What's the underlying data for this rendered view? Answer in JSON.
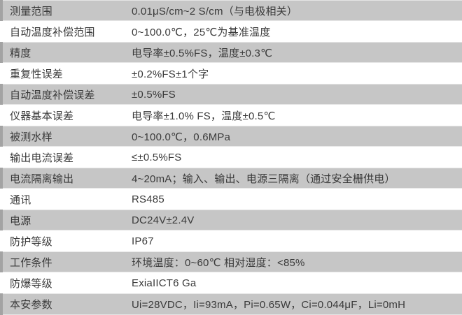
{
  "table": {
    "rows": [
      {
        "label": "测量范围",
        "value": "0.01μS/cm~2 S/cm（与电极相关）"
      },
      {
        "label": "自动温度补偿范围",
        "value": "0~100.0℃，25℃为基准温度"
      },
      {
        "label": "精度",
        "value": "电导率±0.5%FS，温度±0.3℃"
      },
      {
        "label": "重复性误差",
        "value": "±0.2%FS±1个字"
      },
      {
        "label": "自动温度补偿误差",
        "value": "±0.5%FS"
      },
      {
        "label": "仪器基本误差",
        "value": "电导率±1.0% FS，温度±0.5℃"
      },
      {
        "label": "被测水样",
        "value": "0~100.0℃，0.6MPa"
      },
      {
        "label": "输出电流误差",
        "value": "≤±0.5%FS"
      },
      {
        "label": "电流隔离输出",
        "value": "4~20mA；输入、输出、电源三隔离（通过安全栅供电）"
      },
      {
        "label": "通讯",
        "value": "RS485"
      },
      {
        "label": "电源",
        "value": "DC24V±2.4V"
      },
      {
        "label": "防护等级",
        "value": "IP67"
      },
      {
        "label": "工作条件",
        "value": "环境温度：0~60℃ 相对湿度：<85%"
      },
      {
        "label": "防爆等级",
        "value": "ExiaIICT6 Ga"
      },
      {
        "label": "本安参数",
        "value": "Ui=28VDC，Ii=93mA，Pi=0.65W，Ci=0.044μF，Li=0mH"
      }
    ]
  },
  "colors": {
    "row_shaded": "#c6c6c6",
    "row_plain": "#ffffff",
    "left_accent": "#a3a3a3",
    "text": "#3a3a3a"
  }
}
